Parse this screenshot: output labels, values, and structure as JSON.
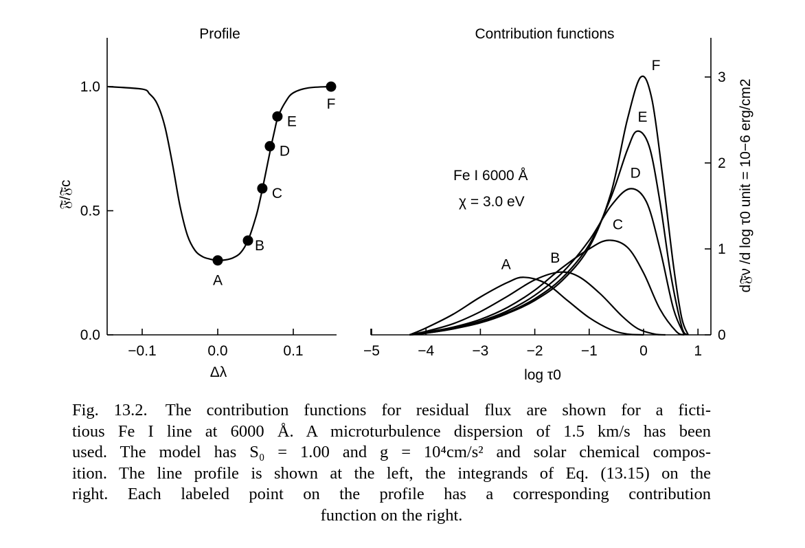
{
  "chart_data": [
    {
      "type": "line",
      "title": "Profile",
      "xlabel": "Δλ",
      "ylabel": "𝔉̃/𝔉̃c",
      "xlim": [
        -0.145,
        0.16
      ],
      "ylim": [
        0.0,
        1.2
      ],
      "xticks": [
        -0.1,
        0.0,
        0.1
      ],
      "xtick_labels": [
        "−0.1",
        "0.0",
        "0.1"
      ],
      "yticks": [
        0.0,
        0.5,
        1.0
      ],
      "ytick_labels": [
        "0.0",
        "0.5",
        "1.0"
      ],
      "grid": false,
      "series": [
        {
          "x": [
            -0.145,
            -0.1,
            -0.09,
            -0.08,
            -0.07,
            -0.06,
            -0.05,
            -0.04,
            -0.03,
            -0.02,
            -0.01,
            0.0,
            0.01,
            0.02,
            0.03,
            0.04,
            0.05,
            0.055,
            0.06,
            0.065,
            0.07,
            0.075,
            0.08,
            0.09,
            0.1,
            0.12,
            0.15
          ],
          "y": [
            1.0,
            0.99,
            0.97,
            0.93,
            0.84,
            0.69,
            0.52,
            0.4,
            0.34,
            0.315,
            0.305,
            0.3,
            0.302,
            0.31,
            0.33,
            0.38,
            0.47,
            0.53,
            0.6,
            0.675,
            0.75,
            0.82,
            0.88,
            0.94,
            0.975,
            0.995,
            1.0
          ]
        }
      ],
      "points": [
        {
          "label": "A",
          "x": 0.0,
          "y": 0.3
        },
        {
          "label": "B",
          "x": 0.04,
          "y": 0.38
        },
        {
          "label": "C",
          "x": 0.059,
          "y": 0.59
        },
        {
          "label": "D",
          "x": 0.069,
          "y": 0.76
        },
        {
          "label": "E",
          "x": 0.079,
          "y": 0.88
        },
        {
          "label": "F",
          "x": 0.15,
          "y": 1.0
        }
      ]
    },
    {
      "type": "line",
      "title": "Contribution functions",
      "xlabel": "log τ0",
      "ylabel": "d𝔉̃ν /d log τ0 unit = 10−6 erg/cm2",
      "xlim": [
        -5,
        1.1
      ],
      "ylim": [
        0,
        3.5
      ],
      "xticks": [
        -5,
        -4,
        -3,
        -2,
        -1,
        0,
        1
      ],
      "xtick_labels": [
        "−5",
        "−4",
        "−3",
        "−2",
        "−1",
        "0",
        "1"
      ],
      "yticks": [
        0,
        1,
        2,
        3
      ],
      "ytick_labels": [
        "0",
        "1",
        "2",
        "3"
      ],
      "grid": false,
      "annotation": [
        "Fe I  6000 Å",
        "χ = 3.0 eV"
      ],
      "series": [
        {
          "name": "A",
          "peak_x": -2.2,
          "peak_y": 0.67,
          "x": [
            -4.3,
            -4.0,
            -3.5,
            -3.0,
            -2.5,
            -2.2,
            -1.8,
            -1.4,
            -1.0,
            -0.6,
            -0.3,
            0.0
          ],
          "y": [
            0.0,
            0.08,
            0.24,
            0.44,
            0.61,
            0.67,
            0.6,
            0.4,
            0.2,
            0.06,
            0.01,
            0.0
          ]
        },
        {
          "name": "B",
          "peak_x": -1.55,
          "peak_y": 0.73,
          "x": [
            -4.3,
            -4.0,
            -3.5,
            -3.0,
            -2.5,
            -2.0,
            -1.55,
            -1.2,
            -0.8,
            -0.4,
            -0.1,
            0.2,
            0.4
          ],
          "y": [
            0.0,
            0.04,
            0.13,
            0.27,
            0.45,
            0.64,
            0.73,
            0.68,
            0.48,
            0.22,
            0.07,
            0.01,
            0.0
          ]
        },
        {
          "name": "C",
          "peak_x": -0.65,
          "peak_y": 1.1,
          "x": [
            -4.3,
            -4.0,
            -3.5,
            -3.0,
            -2.5,
            -2.0,
            -1.5,
            -1.0,
            -0.65,
            -0.3,
            0.0,
            0.3,
            0.6,
            0.75
          ],
          "y": [
            0.0,
            0.03,
            0.09,
            0.18,
            0.32,
            0.52,
            0.78,
            1.0,
            1.1,
            1.02,
            0.72,
            0.3,
            0.04,
            0.0
          ]
        },
        {
          "name": "D",
          "peak_x": -0.25,
          "peak_y": 1.7,
          "x": [
            -4.3,
            -4.0,
            -3.5,
            -3.0,
            -2.5,
            -2.0,
            -1.5,
            -1.0,
            -0.6,
            -0.25,
            0.05,
            0.3,
            0.55,
            0.75
          ],
          "y": [
            0.0,
            0.03,
            0.08,
            0.16,
            0.28,
            0.46,
            0.72,
            1.1,
            1.5,
            1.7,
            1.55,
            1.0,
            0.3,
            0.0
          ]
        },
        {
          "name": "E",
          "peak_x": -0.12,
          "peak_y": 2.37,
          "x": [
            -4.3,
            -4.0,
            -3.5,
            -3.0,
            -2.5,
            -2.0,
            -1.5,
            -1.0,
            -0.6,
            -0.3,
            -0.12,
            0.1,
            0.3,
            0.5,
            0.7,
            0.8
          ],
          "y": [
            0.0,
            0.02,
            0.07,
            0.15,
            0.26,
            0.42,
            0.66,
            1.05,
            1.6,
            2.15,
            2.37,
            2.2,
            1.55,
            0.7,
            0.1,
            0.0
          ]
        },
        {
          "name": "F",
          "peak_x": -0.05,
          "peak_y": 3.0,
          "x": [
            -4.3,
            -4.0,
            -3.5,
            -3.0,
            -2.5,
            -2.0,
            -1.5,
            -1.0,
            -0.6,
            -0.3,
            -0.05,
            0.15,
            0.35,
            0.55,
            0.7,
            0.82
          ],
          "y": [
            0.0,
            0.02,
            0.07,
            0.14,
            0.25,
            0.4,
            0.63,
            1.02,
            1.65,
            2.5,
            3.0,
            2.75,
            1.85,
            0.8,
            0.2,
            0.0
          ]
        }
      ]
    }
  ],
  "caption": {
    "fig_number": "Fig. 13.2.",
    "lines": [
      "The contribution functions for residual flux are shown for a ficti-",
      "tious Fe I line at 6000 Å. A microturbulence dispersion of 1.5 km/s has been",
      "used. The model has S₀ = 1.00 and g = 10⁴cm/s² and solar chemical compos-",
      "ition. The line profile is shown at the left, the integrands of Eq. (13.15) on the",
      "right. Each labeled point on the profile has a corresponding contribution",
      "function on the right."
    ]
  }
}
